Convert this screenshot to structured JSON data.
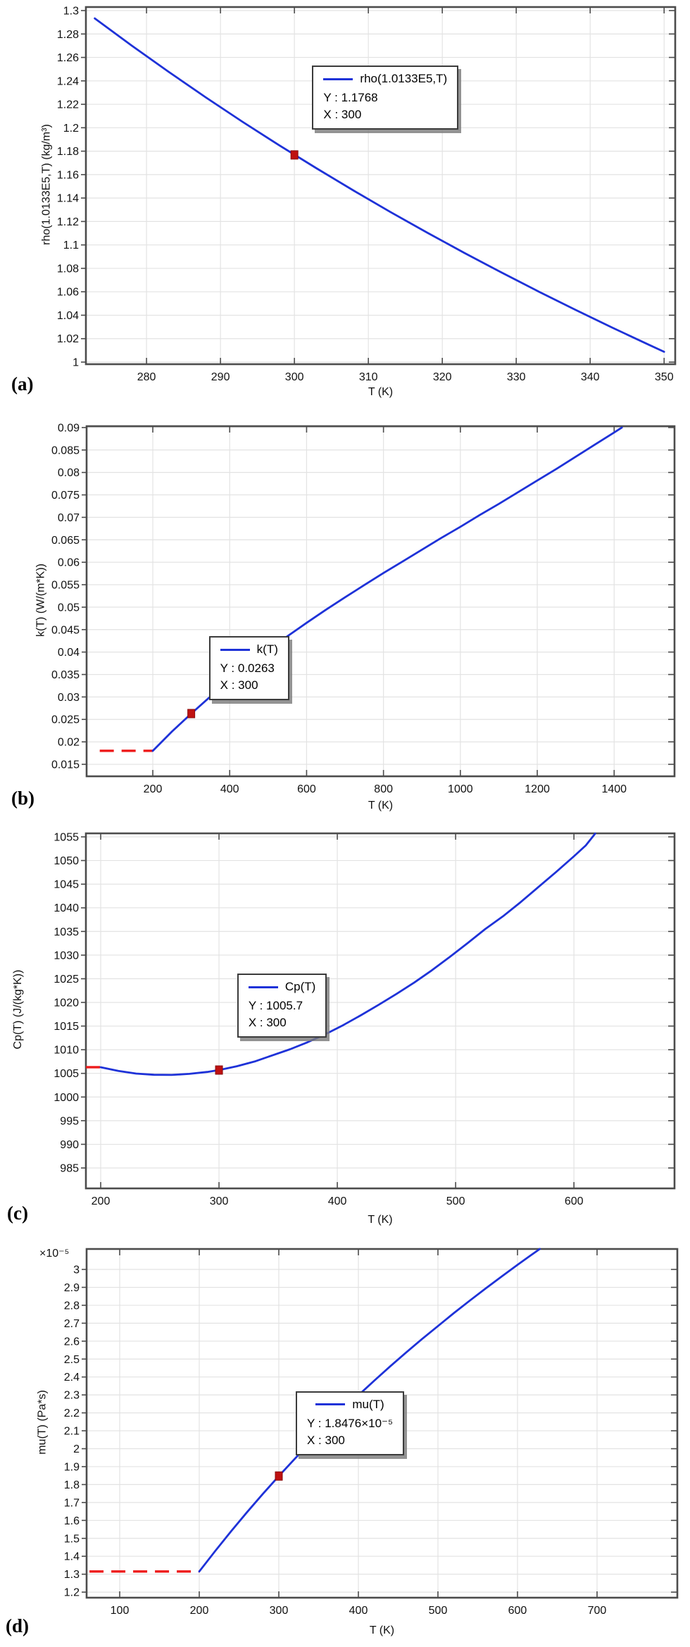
{
  "colors": {
    "line_blue": "#1e32d8",
    "dash_red": "#ee1b1b",
    "marker_red": "#bf1111",
    "marker_edge": "#8a0c0c",
    "grid_line": "#e3e3e3",
    "axis_frame": "#4c4c4c",
    "tick_text": "#111111",
    "legend_border": "#3b3b3b"
  },
  "chart_data": [
    {
      "id": "a",
      "type": "line",
      "caption": "(a)",
      "xlabel": "T (K)",
      "ylabel": "rho(1.0133E5,T) (kg/m³)",
      "y_multiplier": "",
      "xlim": [
        271.8,
        351.5
      ],
      "ylim": [
        0.9982,
        1.303
      ],
      "x_ticks": [
        280,
        290,
        300,
        310,
        320,
        330,
        340,
        350
      ],
      "x_tick_labels": [
        "280",
        "290",
        "300",
        "310",
        "320",
        "330",
        "340",
        "350"
      ],
      "y_ticks": [
        1,
        1.02,
        1.04,
        1.06,
        1.08,
        1.1,
        1.12,
        1.14,
        1.16,
        1.18,
        1.2,
        1.22,
        1.24,
        1.26,
        1.28,
        1.3
      ],
      "y_tick_labels": [
        "1",
        "1.02",
        "1.04",
        "1.06",
        "1.08",
        "1.1",
        "1.12",
        "1.14",
        "1.16",
        "1.18",
        "1.2",
        "1.22",
        "1.24",
        "1.26",
        "1.28",
        "1.3"
      ],
      "series": [
        {
          "name": "rho(1.0133E5,T)",
          "points": [
            [
              273,
              1.2933
            ],
            [
              278,
              1.2701
            ],
            [
              283,
              1.2477
            ],
            [
              288,
              1.226
            ],
            [
              293,
              1.205
            ],
            [
              298,
              1.1848
            ],
            [
              303,
              1.1653
            ],
            [
              308,
              1.1464
            ],
            [
              313,
              1.128
            ],
            [
              318,
              1.1103
            ],
            [
              323,
              1.0931
            ],
            [
              328,
              1.0765
            ],
            [
              333,
              1.0603
            ],
            [
              338,
              1.0446
            ],
            [
              343,
              1.0294
            ],
            [
              348,
              1.0146
            ],
            [
              350,
              1.0088
            ]
          ]
        }
      ],
      "red_dash": null,
      "marker": {
        "x": 300,
        "y": 1.1768
      },
      "legend": {
        "label": "rho(1.0133E5,T)",
        "y_text": "Y : 1.1768",
        "x_text": "X : 300",
        "fx": 0.384,
        "fy": 0.164
      }
    },
    {
      "id": "b",
      "type": "line",
      "caption": "(b)",
      "xlabel": "T (K)",
      "ylabel": "k(T) (W/(m*K))",
      "y_multiplier": "",
      "xlim": [
        27.8,
        1557
      ],
      "ylim": [
        0.01233,
        0.0903
      ],
      "x_ticks": [
        200,
        400,
        600,
        800,
        1000,
        1200,
        1400
      ],
      "x_tick_labels": [
        "200",
        "400",
        "600",
        "800",
        "1000",
        "1200",
        "1400"
      ],
      "y_ticks": [
        0.015,
        0.02,
        0.025,
        0.03,
        0.035,
        0.04,
        0.045,
        0.05,
        0.055,
        0.06,
        0.065,
        0.07,
        0.075,
        0.08,
        0.085,
        0.09
      ],
      "y_tick_labels": [
        "0.015",
        "0.02",
        "0.025",
        "0.03",
        "0.035",
        "0.04",
        "0.045",
        "0.05",
        "0.055",
        "0.06",
        "0.065",
        "0.07",
        "0.075",
        "0.08",
        "0.085",
        "0.09"
      ],
      "series": [
        {
          "name": "k(T)",
          "points": [
            [
              200,
              0.018
            ],
            [
              250,
              0.0223
            ],
            [
              300,
              0.0263
            ],
            [
              350,
              0.0301
            ],
            [
              400,
              0.0337
            ],
            [
              450,
              0.0371
            ],
            [
              500,
              0.0404
            ],
            [
              550,
              0.0435
            ],
            [
              600,
              0.0465
            ],
            [
              650,
              0.0494
            ],
            [
              700,
              0.0522
            ],
            [
              750,
              0.0549
            ],
            [
              800,
              0.0576
            ],
            [
              850,
              0.0602
            ],
            [
              900,
              0.0628
            ],
            [
              950,
              0.0654
            ],
            [
              1000,
              0.0679
            ],
            [
              1050,
              0.0705
            ],
            [
              1100,
              0.073
            ],
            [
              1150,
              0.0756
            ],
            [
              1200,
              0.0782
            ],
            [
              1250,
              0.0808
            ],
            [
              1300,
              0.0835
            ],
            [
              1350,
              0.0862
            ],
            [
              1400,
              0.0889
            ],
            [
              1420,
              0.09
            ]
          ]
        }
      ],
      "red_dash": {
        "y": 0.018,
        "x_from": 62,
        "x_to": 200
      },
      "marker": {
        "x": 300,
        "y": 0.0263
      },
      "legend": {
        "label": "k(T)",
        "y_text": "Y : 0.0263",
        "x_text": "X : 300",
        "fx": 0.208,
        "fy": 0.6
      }
    },
    {
      "id": "c",
      "type": "line",
      "caption": "(c)",
      "xlabel": "T (K)",
      "ylabel": "Cp(T) (J/(kg*K))",
      "y_multiplier": "",
      "xlim": [
        187.5,
        685
      ],
      "ylim": [
        980.68,
        1055.74
      ],
      "x_ticks": [
        200,
        300,
        400,
        500,
        600
      ],
      "x_tick_labels": [
        "200",
        "300",
        "400",
        "500",
        "600"
      ],
      "y_ticks": [
        985,
        990,
        995,
        1000,
        1005,
        1010,
        1015,
        1020,
        1025,
        1030,
        1035,
        1040,
        1045,
        1050,
        1055
      ],
      "y_tick_labels": [
        "985",
        "990",
        "995",
        "1000",
        "1005",
        "1010",
        "1015",
        "1020",
        "1025",
        "1030",
        "1035",
        "1040",
        "1045",
        "1050",
        "1055"
      ],
      "series": [
        {
          "name": "Cp(T)",
          "points": [
            [
              200,
              1006.3
            ],
            [
              215,
              1005.5
            ],
            [
              230,
              1004.95
            ],
            [
              245,
              1004.7
            ],
            [
              260,
              1004.67
            ],
            [
              275,
              1004.9
            ],
            [
              290,
              1005.3
            ],
            [
              300,
              1005.7
            ],
            [
              315,
              1006.5
            ],
            [
              330,
              1007.5
            ],
            [
              345,
              1008.8
            ],
            [
              360,
              1010.1
            ],
            [
              375,
              1011.6
            ],
            [
              390,
              1013.3
            ],
            [
              405,
              1015.2
            ],
            [
              420,
              1017.3
            ],
            [
              435,
              1019.5
            ],
            [
              450,
              1021.8
            ],
            [
              465,
              1024.2
            ],
            [
              480,
              1026.8
            ],
            [
              495,
              1029.6
            ],
            [
              510,
              1032.5
            ],
            [
              525,
              1035.5
            ],
            [
              540,
              1038.2
            ],
            [
              555,
              1041.2
            ],
            [
              570,
              1044.4
            ],
            [
              585,
              1047.6
            ],
            [
              600,
              1050.9
            ],
            [
              610,
              1053.2
            ],
            [
              618,
              1055.7
            ]
          ]
        }
      ],
      "red_dash": {
        "y": 1006.3,
        "x_from": 187.5,
        "x_to": 200
      },
      "marker": {
        "x": 300,
        "y": 1005.7
      },
      "legend": {
        "label": "Cp(T)",
        "y_text": "Y : 1005.7",
        "x_text": "X : 300",
        "fx": 0.257,
        "fy": 0.395
      }
    },
    {
      "id": "d",
      "type": "line",
      "caption": "(d)",
      "xlabel": "T (K)",
      "ylabel": "mu(T) (Pa*s)",
      "y_multiplier": "×10⁻⁵",
      "xlim": [
        58.4,
        800.9
      ],
      "ylim": [
        1.169,
        3.114
      ],
      "x_ticks": [
        100,
        200,
        300,
        400,
        500,
        600,
        700
      ],
      "x_tick_labels": [
        "100",
        "200",
        "300",
        "400",
        "500",
        "600",
        "700"
      ],
      "y_ticks": [
        1.2,
        1.3,
        1.4,
        1.5,
        1.6,
        1.7,
        1.8,
        1.9,
        2,
        2.1,
        2.2,
        2.3,
        2.4,
        2.5,
        2.6,
        2.7,
        2.8,
        2.9,
        3
      ],
      "y_tick_labels": [
        "1.2",
        "1.3",
        "1.4",
        "1.5",
        "1.6",
        "1.7",
        "1.8",
        "1.9",
        "2",
        "2.1",
        "2.2",
        "2.3",
        "2.4",
        "2.5",
        "2.6",
        "2.7",
        "2.8",
        "2.9",
        "3"
      ],
      "series": [
        {
          "name": "mu(T)",
          "points": [
            [
              200,
              1.3152
            ],
            [
              220,
              1.4293
            ],
            [
              240,
              1.5394
            ],
            [
              260,
              1.6457
            ],
            [
              280,
              1.7483
            ],
            [
              300,
              1.8476
            ],
            [
              320,
              1.9436
            ],
            [
              340,
              2.0364
            ],
            [
              360,
              2.1263
            ],
            [
              380,
              2.2134
            ],
            [
              400,
              2.2979
            ],
            [
              420,
              2.3798
            ],
            [
              440,
              2.4593
            ],
            [
              460,
              2.5366
            ],
            [
              480,
              2.6118
            ],
            [
              500,
              2.6841
            ],
            [
              520,
              2.7564
            ],
            [
              540,
              2.826
            ],
            [
              560,
              2.894
            ],
            [
              580,
              2.9604
            ],
            [
              600,
              3.0255
            ],
            [
              615,
              3.073
            ],
            [
              628,
              3.114
            ]
          ]
        }
      ],
      "red_dash": {
        "y": 1.3152,
        "x_from": 62,
        "x_to": 200
      },
      "marker": {
        "x": 300,
        "y": 1.8476
      },
      "legend": {
        "label": "mu(T)",
        "y_text": "Y : 1.8476×10⁻⁵",
        "x_text": "X : 300",
        "fx": 0.354,
        "fy": 0.408
      }
    }
  ]
}
